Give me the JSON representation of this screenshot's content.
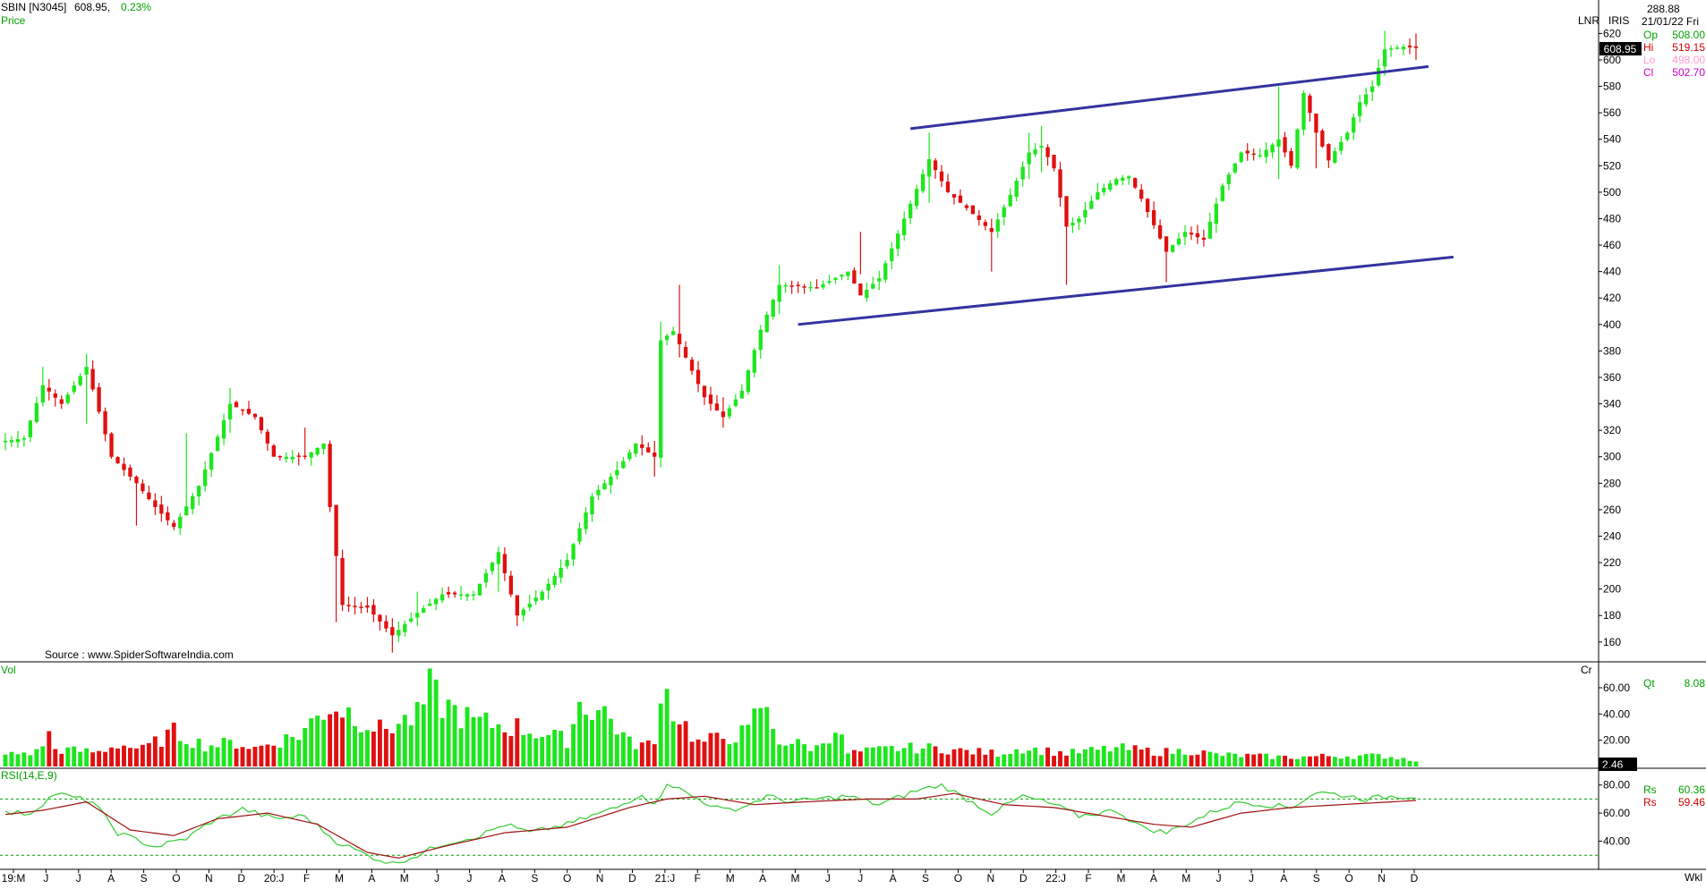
{
  "header": {
    "symbol": "SBIN [N3045]",
    "last_price": "608.95,",
    "change_pct": "0.23%",
    "pane_label": "Price",
    "source": "Source : www.SpiderSoftwareIndia.com"
  },
  "right_panel": {
    "scale_labels": [
      "LNR",
      "IRIS"
    ],
    "top_value": "288.88",
    "date": "21/01/22 Fri",
    "ohlc": [
      {
        "label": "Op",
        "value": "508.00"
      },
      {
        "label": "Hi",
        "value": "519.15"
      },
      {
        "label": "Lo",
        "value": "498.00"
      },
      {
        "label": "Cl",
        "value": "502.70"
      }
    ],
    "price_tag": "608.95",
    "volume_unit": "Cr",
    "volume_tag": "2.46",
    "volume_readout": {
      "label": "Qt",
      "value": "8.08"
    },
    "rsi_readout": [
      {
        "label": "Rs",
        "value": "60.36"
      },
      {
        "label": "Rs",
        "value": "59.46"
      }
    ],
    "period": "Wkl"
  },
  "colors": {
    "up": "#1ee61e",
    "down": "#e01010",
    "trendline": "#3333a0",
    "rsi_line": "#33cc33",
    "rsi_signal": "#a01010",
    "panel_border": "#000000",
    "label_green": "#00a000",
    "label_red": "#d00000",
    "label_pink": "#ff99cc",
    "label_purple": "#cc00cc"
  },
  "chart_data": [
    {
      "type": "candlestick",
      "title": "SBIN [N3045]",
      "ylabel": "Price",
      "ylim": [
        145,
        625
      ],
      "y_ticks": [
        160,
        180,
        200,
        220,
        240,
        260,
        280,
        300,
        320,
        340,
        360,
        380,
        400,
        420,
        440,
        460,
        480,
        500,
        520,
        540,
        560,
        580,
        600,
        620
      ],
      "x_tick_labels": [
        "19:M",
        "J",
        "J",
        "A",
        "S",
        "O",
        "N",
        "D",
        "20:J",
        "F",
        "M",
        "A",
        "M",
        "J",
        "J",
        "A",
        "S",
        "O",
        "N",
        "D",
        "21:J",
        "F",
        "M",
        "A",
        "M",
        "J",
        "J",
        "A",
        "S",
        "O",
        "N",
        "D",
        "22:J",
        "F",
        "M",
        "A",
        "M",
        "J",
        "J",
        "A",
        "S",
        "O",
        "N",
        "D"
      ],
      "anchors": [
        [
          0,
          312
        ],
        [
          3,
          314
        ],
        [
          6,
          354
        ],
        [
          9,
          340
        ],
        [
          13,
          368
        ],
        [
          17,
          300
        ],
        [
          21,
          280
        ],
        [
          24,
          262
        ],
        [
          27,
          247
        ],
        [
          31,
          278
        ],
        [
          36,
          340
        ],
        [
          40,
          330
        ],
        [
          43,
          300
        ],
        [
          48,
          300
        ],
        [
          51,
          310
        ],
        [
          52,
          262
        ],
        [
          54,
          188
        ],
        [
          58,
          186
        ],
        [
          62,
          165
        ],
        [
          66,
          182
        ],
        [
          70,
          196
        ],
        [
          75,
          196
        ],
        [
          79,
          228
        ],
        [
          82,
          180
        ],
        [
          86,
          198
        ],
        [
          90,
          222
        ],
        [
          94,
          270
        ],
        [
          98,
          290
        ],
        [
          101,
          310
        ],
        [
          104,
          300
        ],
        [
          105,
          388
        ],
        [
          107,
          395
        ],
        [
          112,
          345
        ],
        [
          115,
          330
        ],
        [
          118,
          350
        ],
        [
          121,
          396
        ],
        [
          124,
          430
        ],
        [
          130,
          428
        ],
        [
          135,
          440
        ],
        [
          137,
          422
        ],
        [
          140,
          435
        ],
        [
          144,
          480
        ],
        [
          148,
          525
        ],
        [
          151,
          500
        ],
        [
          154,
          488
        ],
        [
          158,
          470
        ],
        [
          161,
          498
        ],
        [
          164,
          530
        ],
        [
          166,
          535
        ],
        [
          168,
          518
        ],
        [
          170,
          474
        ],
        [
          172,
          480
        ],
        [
          175,
          500
        ],
        [
          178,
          510
        ],
        [
          180,
          512
        ],
        [
          182,
          495
        ],
        [
          184,
          475
        ],
        [
          186,
          455
        ],
        [
          189,
          470
        ],
        [
          192,
          464
        ],
        [
          195,
          505
        ],
        [
          198,
          530
        ],
        [
          201,
          528
        ],
        [
          204,
          540
        ],
        [
          206,
          520
        ],
        [
          208,
          575
        ],
        [
          210,
          545
        ],
        [
          212,
          524
        ],
        [
          215,
          545
        ],
        [
          217,
          568
        ],
        [
          219,
          580
        ],
        [
          221,
          608
        ],
        [
          224,
          610
        ],
        [
          226,
          609
        ]
      ],
      "wick_extents": [
        [
          0,
          318,
          305
        ],
        [
          6,
          368,
          338
        ],
        [
          13,
          378,
          325
        ],
        [
          21,
          286,
          248
        ],
        [
          29,
          318,
          262
        ],
        [
          36,
          352,
          318
        ],
        [
          48,
          322,
          298
        ],
        [
          53,
          262,
          175
        ],
        [
          62,
          178,
          152
        ],
        [
          66,
          198,
          172
        ],
        [
          79,
          232,
          198
        ],
        [
          82,
          185,
          172
        ],
        [
          104,
          312,
          285
        ],
        [
          105,
          402,
          292
        ],
        [
          108,
          430,
          375
        ],
        [
          115,
          345,
          322
        ],
        [
          124,
          445,
          408
        ],
        [
          137,
          470,
          438
        ],
        [
          148,
          545,
          492
        ],
        [
          158,
          480,
          440
        ],
        [
          164,
          545,
          510
        ],
        [
          166,
          550,
          515
        ],
        [
          170,
          490,
          430
        ],
        [
          186,
          460,
          432
        ],
        [
          204,
          580,
          510
        ],
        [
          210,
          552,
          518
        ],
        [
          221,
          622,
          588
        ],
        [
          226,
          620,
          600
        ]
      ],
      "trendlines": [
        {
          "from": [
            145,
            548
          ],
          "to": [
            228,
            595
          ]
        },
        {
          "from": [
            127,
            400
          ],
          "to": [
            232,
            451
          ]
        }
      ]
    },
    {
      "type": "bar",
      "ylabel": "Vol",
      "unit": "Cr",
      "ylim": [
        0,
        75
      ],
      "y_ticks": [
        20,
        40,
        60
      ],
      "anchors": [
        [
          0,
          9
        ],
        [
          5,
          11
        ],
        [
          7,
          24
        ],
        [
          8,
          13
        ],
        [
          15,
          11
        ],
        [
          18,
          17
        ],
        [
          22,
          13
        ],
        [
          27,
          26
        ],
        [
          32,
          16
        ],
        [
          37,
          18
        ],
        [
          40,
          14
        ],
        [
          47,
          24
        ],
        [
          52,
          47
        ],
        [
          55,
          42
        ],
        [
          60,
          28
        ],
        [
          66,
          38
        ],
        [
          68,
          58
        ],
        [
          70,
          48
        ],
        [
          75,
          34
        ],
        [
          82,
          30
        ],
        [
          90,
          20
        ],
        [
          92,
          48
        ],
        [
          96,
          42
        ],
        [
          100,
          18
        ],
        [
          104,
          16
        ],
        [
          105,
          67
        ],
        [
          107,
          44
        ],
        [
          111,
          18
        ],
        [
          119,
          26
        ],
        [
          121,
          48
        ],
        [
          124,
          20
        ],
        [
          130,
          14
        ],
        [
          133,
          30
        ],
        [
          135,
          10
        ],
        [
          143,
          14
        ],
        [
          149,
          14
        ],
        [
          153,
          12
        ],
        [
          159,
          10
        ],
        [
          163,
          14
        ],
        [
          170,
          10
        ],
        [
          178,
          14
        ],
        [
          185,
          11
        ],
        [
          190,
          12
        ],
        [
          194,
          9
        ],
        [
          200,
          8
        ],
        [
          206,
          7
        ],
        [
          212,
          8
        ],
        [
          221,
          8
        ],
        [
          226,
          5
        ]
      ]
    },
    {
      "type": "line",
      "title": "RSI(14,E,9)",
      "ylim": [
        20,
        90
      ],
      "y_ticks": [
        40,
        60,
        80
      ],
      "reference_levels": [
        30,
        70
      ],
      "series": [
        {
          "name": "Rs",
          "anchors": [
            [
              0,
              60
            ],
            [
              4,
              60
            ],
            [
              8,
              74
            ],
            [
              14,
              68
            ],
            [
              18,
              46
            ],
            [
              24,
              36
            ],
            [
              29,
              42
            ],
            [
              33,
              54
            ],
            [
              38,
              63
            ],
            [
              43,
              56
            ],
            [
              48,
              58
            ],
            [
              53,
              40
            ],
            [
              58,
              30
            ],
            [
              62,
              24
            ],
            [
              66,
              30
            ],
            [
              70,
              38
            ],
            [
              76,
              44
            ],
            [
              80,
              52
            ],
            [
              84,
              46
            ],
            [
              90,
              52
            ],
            [
              94,
              58
            ],
            [
              98,
              64
            ],
            [
              102,
              74
            ],
            [
              104,
              65
            ],
            [
              106,
              82
            ],
            [
              110,
              72
            ],
            [
              115,
              62
            ],
            [
              118,
              64
            ],
            [
              122,
              72
            ],
            [
              126,
              68
            ],
            [
              130,
              70
            ],
            [
              135,
              72
            ],
            [
              140,
              66
            ],
            [
              146,
              76
            ],
            [
              150,
              80
            ],
            [
              154,
              70
            ],
            [
              158,
              60
            ],
            [
              163,
              72
            ],
            [
              168,
              66
            ],
            [
              172,
              58
            ],
            [
              178,
              62
            ],
            [
              182,
              50
            ],
            [
              186,
              46
            ],
            [
              190,
              54
            ],
            [
              194,
              62
            ],
            [
              198,
              68
            ],
            [
              202,
              66
            ],
            [
              206,
              64
            ],
            [
              210,
              75
            ],
            [
              214,
              73
            ],
            [
              218,
              70
            ],
            [
              222,
              72
            ],
            [
              226,
              72
            ]
          ]
        },
        {
          "name": "Rs",
          "anchors": [
            [
              0,
              59
            ],
            [
              6,
              62
            ],
            [
              13,
              68
            ],
            [
              20,
              48
            ],
            [
              27,
              44
            ],
            [
              34,
              56
            ],
            [
              42,
              60
            ],
            [
              50,
              52
            ],
            [
              58,
              32
            ],
            [
              63,
              28
            ],
            [
              70,
              36
            ],
            [
              80,
              46
            ],
            [
              90,
              50
            ],
            [
              100,
              64
            ],
            [
              106,
              70
            ],
            [
              112,
              72
            ],
            [
              120,
              66
            ],
            [
              128,
              68
            ],
            [
              138,
              70
            ],
            [
              146,
              70
            ],
            [
              152,
              74
            ],
            [
              160,
              66
            ],
            [
              168,
              64
            ],
            [
              176,
              58
            ],
            [
              184,
              52
            ],
            [
              190,
              50
            ],
            [
              198,
              60
            ],
            [
              206,
              64
            ],
            [
              214,
              66
            ],
            [
              222,
              68
            ],
            [
              226,
              69
            ]
          ]
        }
      ]
    }
  ]
}
